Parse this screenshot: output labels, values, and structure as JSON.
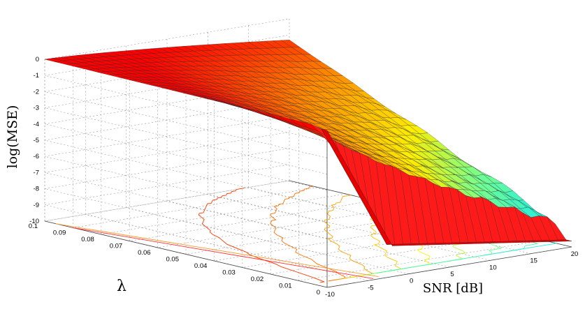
{
  "chart_data": {
    "type": "surface3d",
    "title": "",
    "xlabel": "SNR [dB]",
    "ylabel": "λ",
    "zlabel": "log(MSE)",
    "x_ticks": [
      -10,
      -5,
      0,
      5,
      10,
      15,
      20
    ],
    "y_ticks": [
      0,
      0.01,
      0.02,
      0.03,
      0.04,
      0.05,
      0.06,
      0.07,
      0.08,
      0.09,
      0.1
    ],
    "z_ticks": [
      0,
      -1,
      -2,
      -3,
      -4,
      -5,
      -6,
      -7,
      -8,
      -9,
      -10
    ],
    "xlim": [
      -10,
      20
    ],
    "ylim": [
      0,
      0.1
    ],
    "zlim": [
      -10,
      0
    ],
    "grid": true,
    "colormap": "jet",
    "contour_projection": true,
    "surface_samples": {
      "x": [
        -10,
        -5,
        0,
        5,
        10,
        15,
        20
      ],
      "lambda_0.1": [
        0,
        -0.6,
        -0.9,
        -1.05,
        -1.15,
        -1.2,
        -1.25
      ],
      "lambda_0.05": [
        0,
        -0.9,
        -1.6,
        -2.2,
        -2.8,
        -3.4,
        -4.0
      ],
      "lambda_0.002": [
        -0.3,
        -4.5,
        -8.1,
        -8.6,
        -8.9,
        -9.2,
        -9.6
      ]
    }
  },
  "colors": {
    "low": "#00e5ff",
    "mid": "#ffee00",
    "high": "#ff0000",
    "surface_edge": "#222222"
  }
}
